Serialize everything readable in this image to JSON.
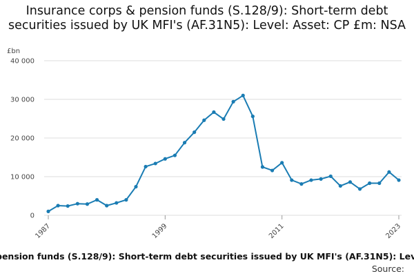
{
  "title": "Insurance corps & pension funds (S.128/9): Short-term debt securities issued by UK MFI's (AF.31N5): Level: Asset: CP £m: NSA",
  "footer": {
    "series_label": "pension funds (S.128/9): Short-term debt securities issued by UK MFI's (AF.31N5): Lev",
    "source_label": "Source:"
  },
  "chart_data": {
    "type": "line",
    "title": "Insurance corps & pension funds (S.128/9): Short-term debt securities issued by UK MFI's (AF.31N5): Level: Asset: CP £m: NSA",
    "ylabel": "£bn",
    "xlabel": "",
    "ylim": [
      0,
      40000
    ],
    "yticks": [
      0,
      10000,
      20000,
      30000,
      40000
    ],
    "ytick_labels": [
      "0",
      "10 000",
      "20 000",
      "30 000",
      "40 000"
    ],
    "xlim": [
      1987,
      2023
    ],
    "xticks": [
      1987,
      1999,
      2011,
      2023
    ],
    "xtick_labels": [
      "1987",
      "1999",
      "2011",
      "2023"
    ],
    "grid": true,
    "legend": "none",
    "color": "#1a7cb3",
    "x": [
      1987,
      1988,
      1989,
      1990,
      1991,
      1992,
      1993,
      1994,
      1995,
      1996,
      1997,
      1998,
      1999,
      2000,
      2001,
      2002,
      2003,
      2004,
      2005,
      2006,
      2007,
      2008,
      2009,
      2010,
      2011,
      2012,
      2013,
      2014,
      2015,
      2016,
      2017,
      2018,
      2019,
      2020,
      2021,
      2022,
      2023
    ],
    "values": [
      1000,
      2500,
      2400,
      3000,
      2900,
      4000,
      2500,
      3200,
      4000,
      7400,
      12600,
      13400,
      14600,
      15500,
      18800,
      21500,
      24600,
      26700,
      24900,
      29400,
      31000,
      25600,
      12500,
      11600,
      13600,
      9100,
      8100,
      9100,
      9400,
      10100,
      7600,
      8600,
      6800,
      8300,
      8300,
      11200,
      9100
    ]
  }
}
